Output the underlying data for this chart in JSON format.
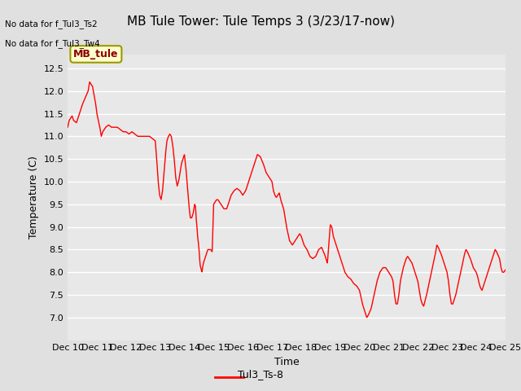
{
  "title": "MB Tule Tower: Tule Temps 3 (3/23/17-now)",
  "xlabel": "Time",
  "ylabel": "Temperature (C)",
  "no_data_text": [
    "No data for f_Tul3_Ts2",
    "No data for f_Tul3_Tw4"
  ],
  "legend_box_label": "MB_tule",
  "legend_series": "Tul3_Ts-8",
  "line_color": "red",
  "ylim": [
    6.5,
    12.8
  ],
  "yticks": [
    7.0,
    7.5,
    8.0,
    8.5,
    9.0,
    9.5,
    10.0,
    10.5,
    11.0,
    11.5,
    12.0,
    12.5
  ],
  "xtick_labels": [
    "Dec 10",
    "Dec 11",
    "Dec 12",
    "Dec 13",
    "Dec 14",
    "Dec 15",
    "Dec 16",
    "Dec 17",
    "Dec 18",
    "Dec 19",
    "Dec 20",
    "Dec 21",
    "Dec 22",
    "Dec 23",
    "Dec 24",
    "Dec 25"
  ],
  "background_color": "#e0e0e0",
  "plot_bg_color": "#e8e8e8",
  "grid_color": "white",
  "title_fontsize": 11,
  "axis_fontsize": 9,
  "tick_fontsize": 8
}
